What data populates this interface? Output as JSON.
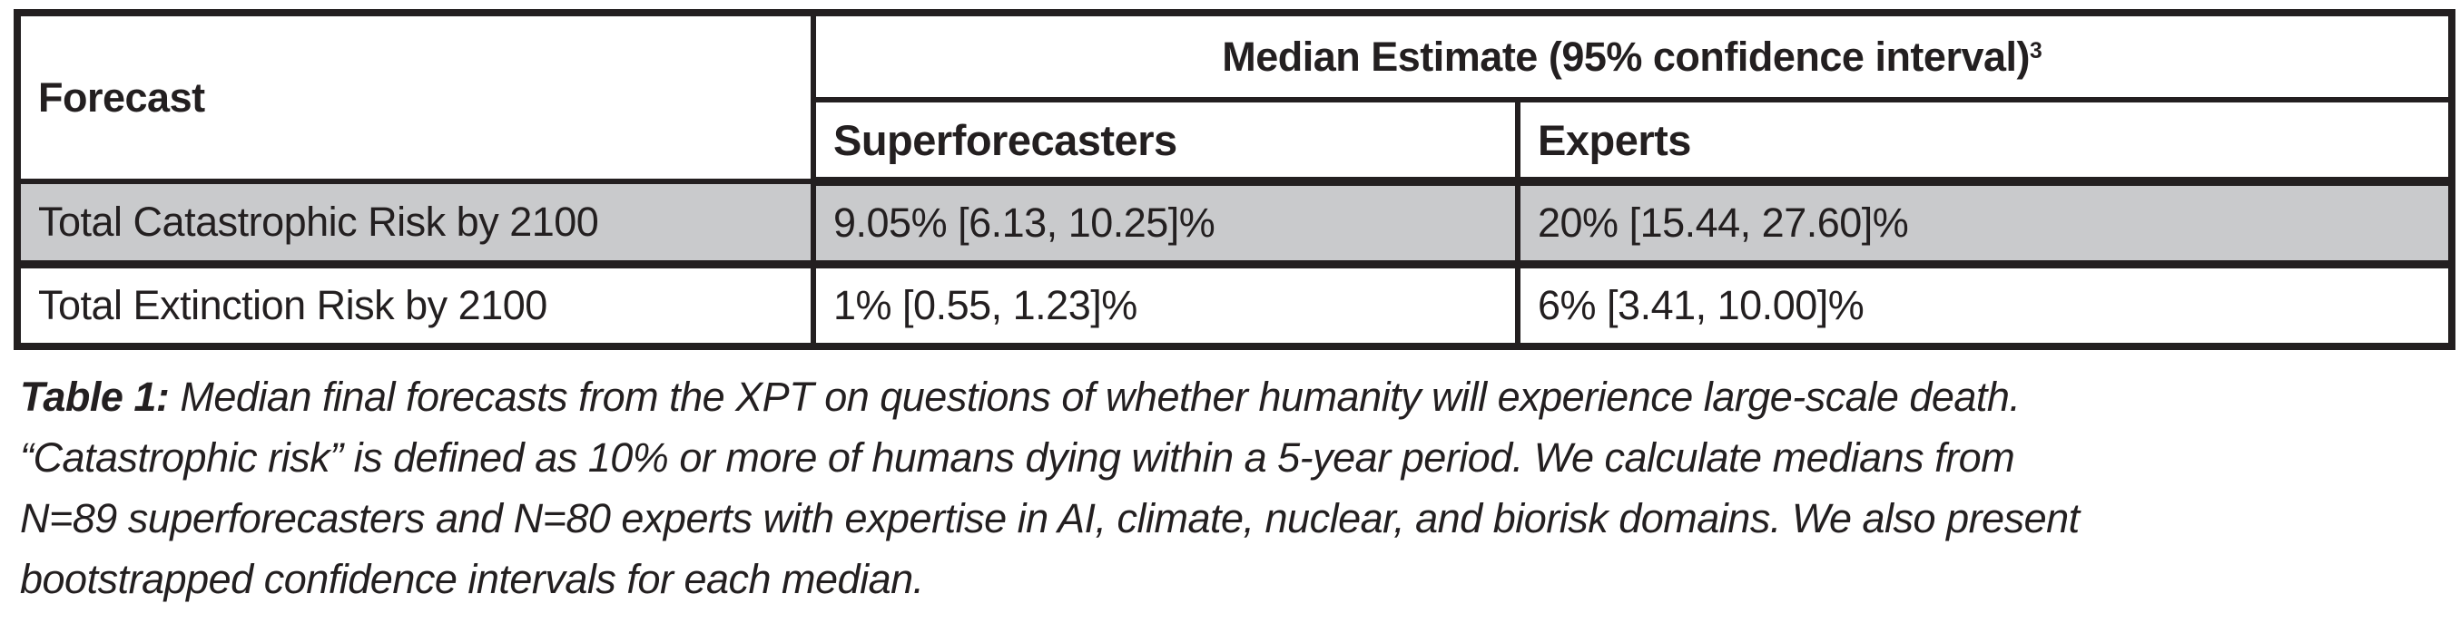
{
  "table": {
    "median_header": {
      "text": "Median Estimate (95% confidence interval)",
      "superscript": "3"
    },
    "column_headers": {
      "forecast": "Forecast",
      "superforecasters": "Superforecasters",
      "experts": "Experts"
    },
    "rows": [
      {
        "forecast": "Total Catastrophic Risk by 2100",
        "superforecasters": "9.05% [6.13, 10.25]%",
        "experts": "20% [15.44, 27.60]%",
        "highlighted": true
      },
      {
        "forecast": "Total Extinction Risk by 2100",
        "superforecasters": "1% [0.55, 1.23]%",
        "experts": "6% [3.41, 10.00]%",
        "highlighted": false
      }
    ]
  },
  "caption": {
    "label": "Table 1:",
    "lines": [
      "Median final forecasts from the XPT on questions of whether humanity will experience large-scale death.",
      "“Catastrophic risk” is defined as 10% or more of humans dying within a 5-year period. We calculate medians from",
      "N=89 superforecasters and N=80 experts with expertise in AI, climate, nuclear, and biorisk domains. We also present",
      "bootstrapped confidence intervals for each median."
    ]
  },
  "colors": {
    "ink": "#231f20",
    "row_highlight": "#c9cacc"
  }
}
